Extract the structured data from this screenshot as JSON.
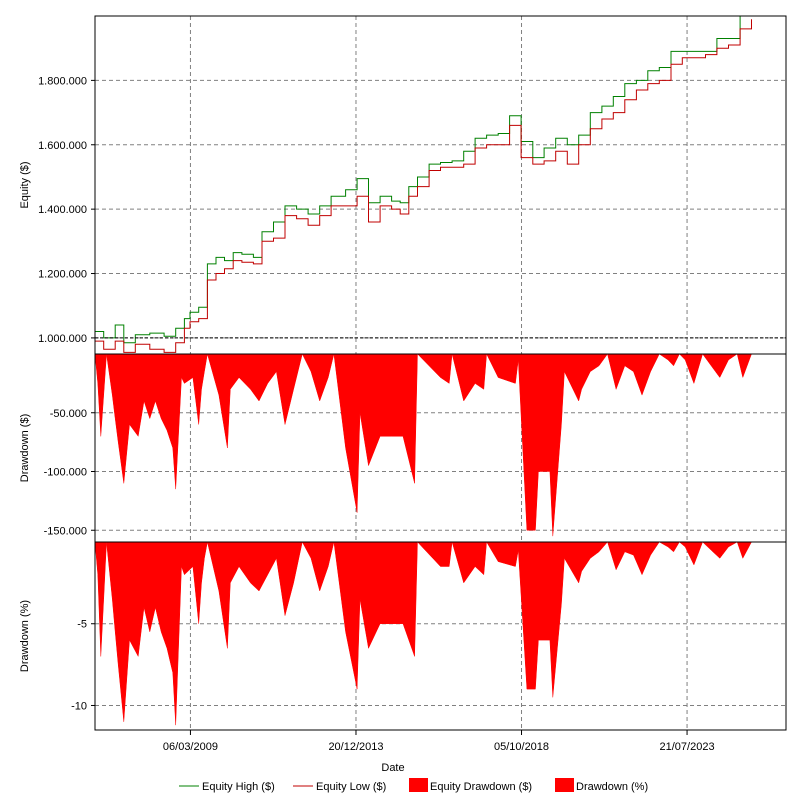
{
  "colors": {
    "equity_high": "#008000",
    "equity_low": "#c00000",
    "drawdown_fill": "#ff0000",
    "grid": "#808080",
    "baseline": "#000000"
  },
  "chart_data": [
    {
      "type": "line",
      "ylabel": "Equity ($)",
      "xlabel": "",
      "x_start": "2006-06-01",
      "x_end": "2026-06-01",
      "ylim": [
        950000,
        2000000
      ],
      "baseline": 1000000,
      "yticks": [
        1000000,
        1200000,
        1400000,
        1600000,
        1800000
      ],
      "ytick_labels": [
        "1.000.000",
        "1.200.000",
        "1.400.000",
        "1.600.000",
        "1.800.000"
      ],
      "grid": true,
      "series": [
        {
          "name": "Equity High ($)",
          "x": [
            "2006-06-01",
            "2006-09-01",
            "2007-01-01",
            "2007-04-01",
            "2007-08-01",
            "2008-01-01",
            "2008-06-01",
            "2008-10-01",
            "2009-01-01",
            "2009-03-01",
            "2009-06-01",
            "2009-09-01",
            "2009-12-01",
            "2010-03-01",
            "2010-06-01",
            "2010-09-01",
            "2011-01-01",
            "2011-04-01",
            "2011-08-01",
            "2011-12-01",
            "2012-04-01",
            "2012-08-01",
            "2012-12-01",
            "2013-04-01",
            "2013-09-01",
            "2014-01-01",
            "2014-05-01",
            "2014-09-01",
            "2015-01-01",
            "2015-04-01",
            "2015-07-01",
            "2015-10-01",
            "2016-02-01",
            "2016-06-01",
            "2016-10-01",
            "2017-02-01",
            "2017-06-01",
            "2017-10-01",
            "2018-02-01",
            "2018-06-01",
            "2018-10-01",
            "2019-02-01",
            "2019-06-01",
            "2019-10-01",
            "2020-02-01",
            "2020-06-01",
            "2020-10-01",
            "2021-02-01",
            "2021-06-01",
            "2021-10-01",
            "2022-02-01",
            "2022-06-01",
            "2022-10-01",
            "2023-02-01",
            "2023-06-01",
            "2023-10-01",
            "2024-02-01",
            "2024-06-01",
            "2024-10-01",
            "2025-02-01",
            "2025-06-01"
          ],
          "values": [
            1020000,
            1000000,
            1040000,
            985000,
            1010000,
            1015000,
            1005000,
            1030000,
            1060000,
            1080000,
            1095000,
            1230000,
            1250000,
            1240000,
            1265000,
            1260000,
            1250000,
            1330000,
            1360000,
            1410000,
            1400000,
            1385000,
            1410000,
            1440000,
            1460000,
            1495000,
            1420000,
            1440000,
            1425000,
            1420000,
            1470000,
            1500000,
            1540000,
            1545000,
            1550000,
            1580000,
            1620000,
            1630000,
            1635000,
            1690000,
            1610000,
            1560000,
            1590000,
            1620000,
            1600000,
            1630000,
            1700000,
            1720000,
            1750000,
            1790000,
            1800000,
            1830000,
            1840000,
            1890000,
            1890000,
            1890000,
            1890000,
            1930000,
            1930000,
            2000000,
            2000000
          ]
        },
        {
          "name": "Equity Low ($)",
          "x": [
            "2006-06-01",
            "2006-09-01",
            "2007-01-01",
            "2007-04-01",
            "2007-08-01",
            "2008-01-01",
            "2008-06-01",
            "2008-10-01",
            "2009-01-01",
            "2009-03-01",
            "2009-06-01",
            "2009-09-01",
            "2009-12-01",
            "2010-03-01",
            "2010-06-01",
            "2010-09-01",
            "2011-01-01",
            "2011-04-01",
            "2011-08-01",
            "2011-12-01",
            "2012-04-01",
            "2012-08-01",
            "2012-12-01",
            "2013-04-01",
            "2013-09-01",
            "2014-01-01",
            "2014-05-01",
            "2014-09-01",
            "2015-01-01",
            "2015-04-01",
            "2015-07-01",
            "2015-10-01",
            "2016-02-01",
            "2016-06-01",
            "2016-10-01",
            "2017-02-01",
            "2017-06-01",
            "2017-10-01",
            "2018-02-01",
            "2018-06-01",
            "2018-10-01",
            "2019-02-01",
            "2019-06-01",
            "2019-10-01",
            "2020-02-01",
            "2020-06-01",
            "2020-10-01",
            "2021-02-01",
            "2021-06-01",
            "2021-10-01",
            "2022-02-01",
            "2022-06-01",
            "2022-10-01",
            "2023-02-01",
            "2023-06-01",
            "2023-10-01",
            "2024-02-01",
            "2024-06-01",
            "2024-10-01",
            "2025-02-01",
            "2025-06-01"
          ],
          "values": [
            990000,
            965000,
            990000,
            955000,
            980000,
            965000,
            955000,
            985000,
            1030000,
            1050000,
            1060000,
            1180000,
            1200000,
            1215000,
            1240000,
            1235000,
            1230000,
            1300000,
            1310000,
            1380000,
            1370000,
            1350000,
            1380000,
            1410000,
            1410000,
            1440000,
            1360000,
            1410000,
            1400000,
            1385000,
            1440000,
            1470000,
            1520000,
            1530000,
            1530000,
            1540000,
            1590000,
            1600000,
            1600000,
            1660000,
            1560000,
            1540000,
            1550000,
            1580000,
            1540000,
            1600000,
            1650000,
            1680000,
            1700000,
            1740000,
            1770000,
            1790000,
            1800000,
            1850000,
            1870000,
            1870000,
            1880000,
            1900000,
            1910000,
            1960000,
            1990000
          ]
        }
      ]
    },
    {
      "type": "area",
      "ylabel": "Drawdown ($)",
      "ylim": [
        -160000,
        0
      ],
      "yticks": [
        -50000,
        -100000,
        -150000
      ],
      "ytick_labels": [
        "-50.000",
        "-100.000",
        "-150.000"
      ],
      "grid": true,
      "series": [
        {
          "name": "Equity Drawdown ($)",
          "x": [
            "2006-06-01",
            "2006-07-01",
            "2006-08-01",
            "2006-09-01",
            "2006-10-01",
            "2006-12-01",
            "2007-01-01",
            "2007-02-01",
            "2007-04-01",
            "2007-06-01",
            "2007-09-01",
            "2007-11-01",
            "2008-01-01",
            "2008-03-01",
            "2008-05-01",
            "2008-07-01",
            "2008-09-01",
            "2008-10-01",
            "2008-12-01",
            "2009-01-01",
            "2009-04-01",
            "2009-06-01",
            "2009-07-01",
            "2009-08-01",
            "2009-09-01",
            "2010-01-01",
            "2010-04-01",
            "2010-05-01",
            "2010-08-01",
            "2010-12-01",
            "2011-03-01",
            "2011-06-01",
            "2011-09-01",
            "2011-12-01",
            "2012-03-01",
            "2012-06-01",
            "2012-09-01",
            "2012-12-01",
            "2013-03-01",
            "2013-05-01",
            "2013-09-01",
            "2014-01-01",
            "2014-02-01",
            "2014-05-01",
            "2014-09-01",
            "2015-01-01",
            "2015-05-01",
            "2015-09-01",
            "2015-10-01",
            "2016-06-01",
            "2016-09-01",
            "2016-10-01",
            "2017-02-01",
            "2017-06-01",
            "2017-09-01",
            "2017-10-01",
            "2018-02-01",
            "2018-08-01",
            "2018-09-01",
            "2018-12-01",
            "2019-03-01",
            "2019-04-01",
            "2019-08-01",
            "2019-09-01",
            "2019-12-01",
            "2020-01-01",
            "2020-06-01",
            "2020-07-01",
            "2020-10-01",
            "2021-01-01",
            "2021-04-01",
            "2021-07-01",
            "2021-10-01",
            "2022-01-01",
            "2022-04-01",
            "2022-07-01",
            "2022-10-01",
            "2023-01-01",
            "2023-03-01",
            "2023-05-01",
            "2023-07-01",
            "2023-10-01",
            "2024-01-01",
            "2024-04-01",
            "2024-07-01",
            "2024-10-01",
            "2025-01-01",
            "2025-03-01",
            "2025-06-01"
          ],
          "values": [
            0,
            -25000,
            -70000,
            -35000,
            0,
            -35000,
            -55000,
            -75000,
            -110000,
            -60000,
            -70000,
            -40000,
            -55000,
            -40000,
            -55000,
            -65000,
            -80000,
            -115000,
            -20000,
            -25000,
            -20000,
            -60000,
            -30000,
            -15000,
            0,
            -35000,
            -80000,
            -30000,
            -20000,
            -30000,
            -40000,
            -25000,
            -15000,
            -60000,
            -30000,
            0,
            -15000,
            -40000,
            -20000,
            0,
            -80000,
            -135000,
            -50000,
            -95000,
            -70000,
            -70000,
            -70000,
            -110000,
            0,
            -20000,
            -25000,
            0,
            -40000,
            -25000,
            -30000,
            0,
            -20000,
            -25000,
            -5000,
            -150000,
            -150000,
            -100000,
            -100000,
            -155000,
            -60000,
            -15000,
            -40000,
            -30000,
            -15000,
            -10000,
            0,
            -30000,
            -10000,
            -15000,
            -35000,
            -15000,
            0,
            -5000,
            -10000,
            0,
            -5000,
            -25000,
            0,
            -10000,
            -20000,
            -5000,
            0,
            -20000,
            0
          ]
        }
      ]
    },
    {
      "type": "area",
      "ylabel": "Drawdown (%)",
      "xlabel": "Date",
      "ylim": [
        -11.5,
        0
      ],
      "yticks": [
        -5,
        -10
      ],
      "ytick_labels": [
        "-5",
        "-10"
      ],
      "xticks": [
        "2009-03-06",
        "2013-12-20",
        "2018-10-05",
        "2023-07-21"
      ],
      "xtick_labels": [
        "06/03/2009",
        "20/12/2013",
        "05/10/2018",
        "21/07/2023"
      ],
      "grid": true,
      "series": [
        {
          "name": "Drawdown (%)",
          "x": [
            "2006-06-01",
            "2006-07-01",
            "2006-08-01",
            "2006-09-01",
            "2006-10-01",
            "2006-12-01",
            "2007-01-01",
            "2007-02-01",
            "2007-04-01",
            "2007-06-01",
            "2007-09-01",
            "2007-11-01",
            "2008-01-01",
            "2008-03-01",
            "2008-05-01",
            "2008-07-01",
            "2008-09-01",
            "2008-10-01",
            "2008-12-01",
            "2009-01-01",
            "2009-04-01",
            "2009-06-01",
            "2009-07-01",
            "2009-08-01",
            "2009-09-01",
            "2010-01-01",
            "2010-04-01",
            "2010-05-01",
            "2010-08-01",
            "2010-12-01",
            "2011-03-01",
            "2011-06-01",
            "2011-09-01",
            "2011-12-01",
            "2012-03-01",
            "2012-06-01",
            "2012-09-01",
            "2012-12-01",
            "2013-03-01",
            "2013-05-01",
            "2013-09-01",
            "2014-01-01",
            "2014-02-01",
            "2014-05-01",
            "2014-09-01",
            "2015-01-01",
            "2015-05-01",
            "2015-09-01",
            "2015-10-01",
            "2016-06-01",
            "2016-09-01",
            "2016-10-01",
            "2017-02-01",
            "2017-06-01",
            "2017-09-01",
            "2017-10-01",
            "2018-02-01",
            "2018-08-01",
            "2018-09-01",
            "2018-12-01",
            "2019-03-01",
            "2019-04-01",
            "2019-08-01",
            "2019-09-01",
            "2019-12-01",
            "2020-01-01",
            "2020-06-01",
            "2020-07-01",
            "2020-10-01",
            "2021-01-01",
            "2021-04-01",
            "2021-07-01",
            "2021-10-01",
            "2022-01-01",
            "2022-04-01",
            "2022-07-01",
            "2022-10-01",
            "2023-01-01",
            "2023-03-01",
            "2023-05-01",
            "2023-07-01",
            "2023-10-01",
            "2024-01-01",
            "2024-04-01",
            "2024-07-01",
            "2024-10-01",
            "2025-01-01",
            "2025-03-01",
            "2025-06-01"
          ],
          "values": [
            0,
            -2,
            -7,
            -3.5,
            0,
            -3.5,
            -5.5,
            -7.5,
            -11,
            -6,
            -7,
            -4,
            -5.5,
            -4,
            -5.5,
            -6.5,
            -8,
            -11.2,
            -1.5,
            -2,
            -1.5,
            -5,
            -2.5,
            -1,
            0,
            -3,
            -6.5,
            -2.5,
            -1.5,
            -2.5,
            -3,
            -2,
            -1,
            -4.5,
            -2.5,
            0,
            -1,
            -3,
            -1.5,
            0,
            -5.5,
            -9,
            -3.5,
            -6.5,
            -5,
            -5,
            -5,
            -7,
            0,
            -1.5,
            -1.5,
            0,
            -2.5,
            -1.5,
            -2,
            0,
            -1.2,
            -1.5,
            -0.5,
            -9,
            -9,
            -6,
            -6,
            -9.5,
            -3.8,
            -1,
            -2.5,
            -1.8,
            -1,
            -0.6,
            0,
            -1.7,
            -0.6,
            -0.8,
            -2,
            -0.8,
            0,
            -0.3,
            -0.6,
            0,
            -0.3,
            -1.4,
            0,
            -0.5,
            -1,
            -0.3,
            0,
            -1,
            0
          ]
        }
      ]
    }
  ]
}
